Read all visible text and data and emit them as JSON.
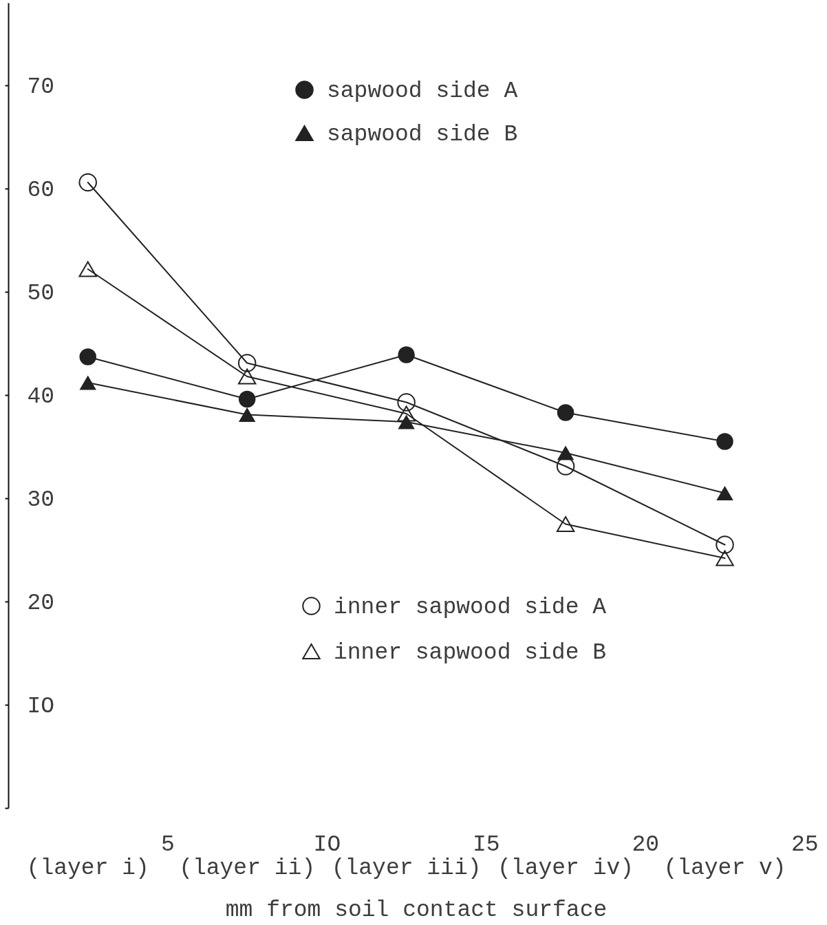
{
  "chart_data": {
    "type": "line",
    "xlabel": "mm from soil contact surface",
    "x": [
      2.5,
      7.5,
      12.5,
      17.5,
      22.5
    ],
    "xlim": [
      0,
      25.6
    ],
    "xticks": [
      5,
      {
        "value": 10,
        "label": "IO"
      },
      {
        "value": 15,
        "label": "I5"
      },
      20,
      25
    ],
    "ylim": [
      0,
      78
    ],
    "yticks": [
      {
        "value": 0,
        "label": null
      },
      {
        "value": 10,
        "label": "IO"
      },
      20,
      30,
      40,
      50,
      60,
      70
    ],
    "series": [
      {
        "name": "sapwood side A",
        "color": "#222222",
        "marker": "circle",
        "values": [
          43.7,
          39.6,
          43.9,
          38.3,
          35.5
        ]
      },
      {
        "name": "sapwood side B",
        "color": "#222222",
        "marker": "triangle",
        "values": [
          41.2,
          38.1,
          37.4,
          34.4,
          30.5
        ]
      },
      {
        "name": "inner sapwood side A",
        "color": "#222222",
        "marker": "circle",
        "values": [
          60.6,
          43.1,
          39.3,
          33.1,
          25.5
        ]
      },
      {
        "name": "inner sapwood side B",
        "color": "#222222",
        "marker": "triangle",
        "values": [
          52.2,
          41.8,
          38.2,
          27.5,
          24.2
        ]
      }
    ],
    "annotations": [
      "(layer i)",
      "(layer ii)",
      "(layer iii)",
      "(layer iv)",
      "(layer v)"
    ],
    "legend": "top",
    "grid": false,
    "line_style": "solid"
  }
}
